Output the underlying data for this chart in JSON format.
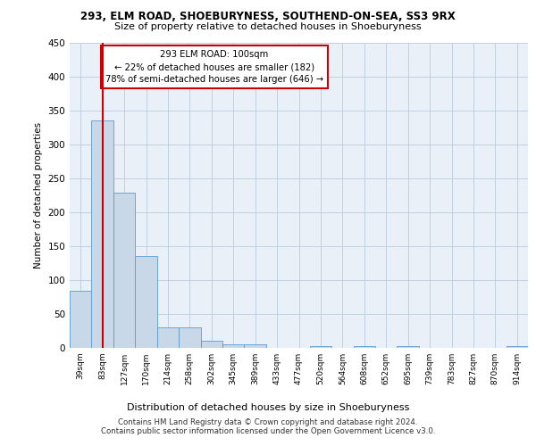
{
  "title1": "293, ELM ROAD, SHOEBURYNESS, SOUTHEND-ON-SEA, SS3 9RX",
  "title2": "Size of property relative to detached houses in Shoeburyness",
  "xlabel": "Distribution of detached houses by size in Shoeburyness",
  "ylabel": "Number of detached properties",
  "categories": [
    "39sqm",
    "83sqm",
    "127sqm",
    "170sqm",
    "214sqm",
    "258sqm",
    "302sqm",
    "345sqm",
    "389sqm",
    "433sqm",
    "477sqm",
    "520sqm",
    "564sqm",
    "608sqm",
    "652sqm",
    "695sqm",
    "739sqm",
    "783sqm",
    "827sqm",
    "870sqm",
    "914sqm"
  ],
  "values": [
    84,
    335,
    228,
    135,
    30,
    30,
    10,
    5,
    5,
    0,
    0,
    3,
    0,
    3,
    0,
    3,
    0,
    0,
    0,
    0,
    3
  ],
  "bar_color": "#c8d8e8",
  "bar_edge_color": "#5b9bd5",
  "vline_x": 1.0,
  "vline_color": "#cc0000",
  "annotation_text": "293 ELM ROAD: 100sqm\n← 22% of detached houses are smaller (182)\n78% of semi-detached houses are larger (646) →",
  "annotation_box_color": "white",
  "annotation_box_edge_color": "#cc0000",
  "ylim": [
    0,
    450
  ],
  "yticks": [
    0,
    50,
    100,
    150,
    200,
    250,
    300,
    350,
    400,
    450
  ],
  "grid_color": "#c0d0e0",
  "background_color": "#eaf0f8",
  "footer1": "Contains HM Land Registry data © Crown copyright and database right 2024.",
  "footer2": "Contains public sector information licensed under the Open Government Licence v3.0."
}
